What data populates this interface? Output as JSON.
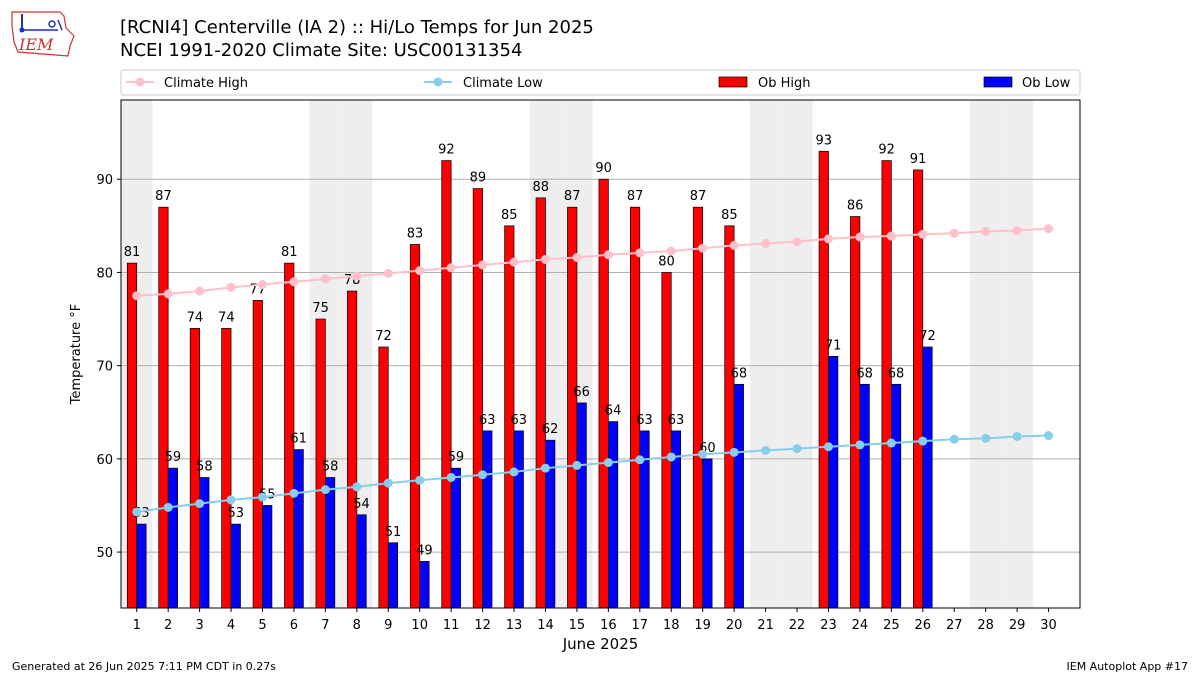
{
  "header": {
    "title_line1": "[RCNI4] Centerville (IA 2) :: Hi/Lo Temps for Jun 2025",
    "title_line2": "NCEI 1991-2020 Climate Site: USC00131354",
    "logo_text": "IEM"
  },
  "footer": {
    "left": "Generated at 26 Jun 2025 7:11 PM CDT in 0.27s",
    "right": "IEM Autoplot App #17"
  },
  "colors": {
    "ob_high": "#ff0000",
    "ob_low": "#0000ff",
    "climate_high": "#ffc0cb",
    "climate_low": "#87ceeb",
    "weekend_shade": "#eeeeee"
  },
  "chart_data": {
    "type": "bar",
    "xlabel": "June 2025",
    "ylabel": "Temperature °F",
    "ylim": [
      44,
      98.5
    ],
    "yticks": [
      50,
      60,
      70,
      80,
      90
    ],
    "grid": "horizontal",
    "legend_position": "top",
    "days": [
      1,
      2,
      3,
      4,
      5,
      6,
      7,
      8,
      9,
      10,
      11,
      12,
      13,
      14,
      15,
      16,
      17,
      18,
      19,
      20,
      21,
      22,
      23,
      24,
      25,
      26,
      27,
      28,
      29,
      30
    ],
    "weekend_days": [
      1,
      7,
      8,
      14,
      15,
      21,
      22,
      28,
      29
    ],
    "series": [
      {
        "name": "Ob High",
        "kind": "bar",
        "values": [
          81,
          87,
          74,
          74,
          77,
          81,
          75,
          78,
          72,
          83,
          92,
          89,
          85,
          88,
          87,
          90,
          87,
          80,
          87,
          85,
          null,
          null,
          93,
          86,
          92,
          91,
          null,
          null,
          null,
          null
        ]
      },
      {
        "name": "Ob Low",
        "kind": "bar",
        "values": [
          53,
          59,
          58,
          53,
          55,
          61,
          58,
          54,
          51,
          49,
          59,
          63,
          63,
          62,
          66,
          64,
          63,
          63,
          60,
          68,
          null,
          null,
          71,
          68,
          68,
          72,
          null,
          null,
          null,
          null
        ]
      },
      {
        "name": "Climate High",
        "kind": "line",
        "values": [
          77.5,
          77.7,
          78.0,
          78.4,
          78.7,
          79.0,
          79.3,
          79.6,
          79.9,
          80.2,
          80.5,
          80.8,
          81.1,
          81.4,
          81.6,
          81.9,
          82.1,
          82.3,
          82.6,
          82.9,
          83.1,
          83.3,
          83.6,
          83.8,
          83.9,
          84.1,
          84.2,
          84.4,
          84.5,
          84.7
        ]
      },
      {
        "name": "Climate Low",
        "kind": "line",
        "values": [
          54.3,
          54.8,
          55.2,
          55.6,
          55.9,
          56.3,
          56.7,
          57.0,
          57.4,
          57.7,
          58.0,
          58.3,
          58.6,
          59.0,
          59.3,
          59.6,
          59.9,
          60.2,
          60.5,
          60.7,
          60.9,
          61.1,
          61.3,
          61.5,
          61.7,
          61.9,
          62.1,
          62.2,
          62.4,
          62.5
        ]
      }
    ]
  }
}
